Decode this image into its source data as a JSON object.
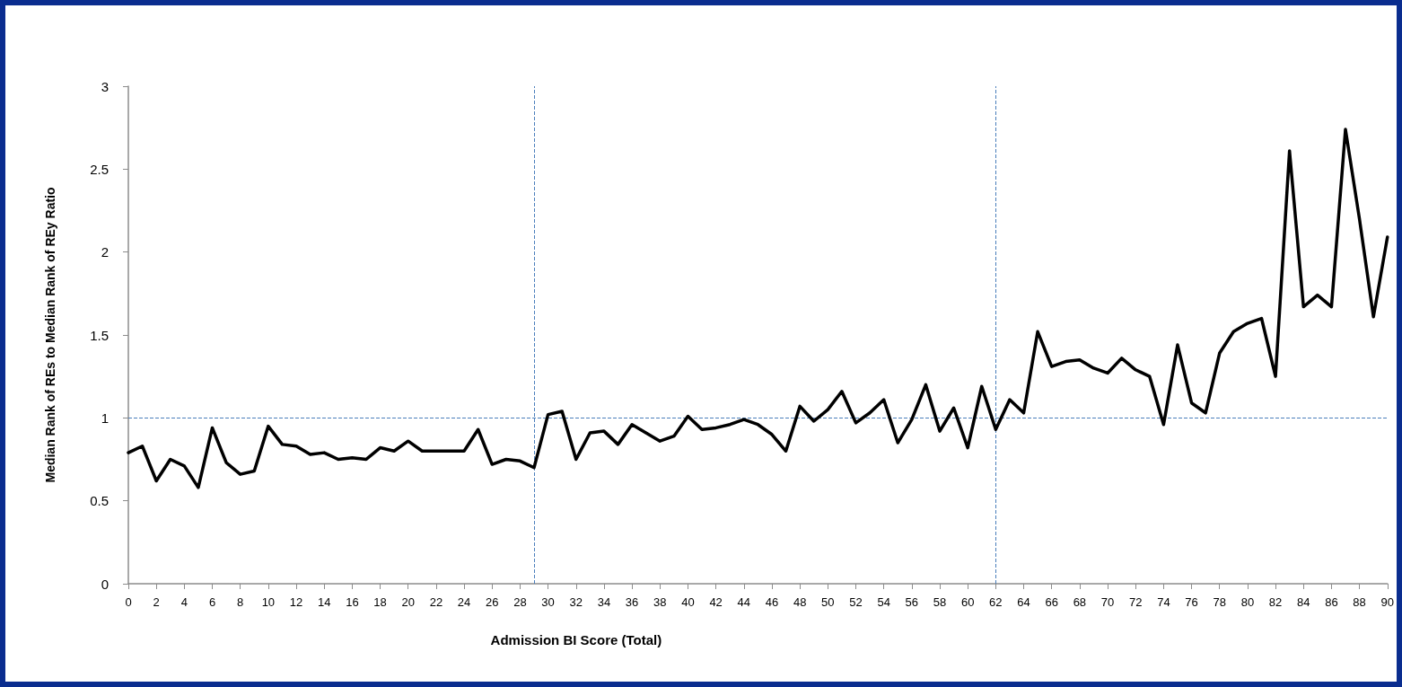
{
  "chart_data": {
    "type": "line",
    "xlabel": "Admission BI Score (Total)",
    "ylabel": "Median Rank of REs to Median Rank of REy Ratio",
    "x": [
      0,
      1,
      2,
      3,
      4,
      5,
      6,
      7,
      8,
      9,
      10,
      11,
      12,
      13,
      14,
      15,
      16,
      17,
      18,
      19,
      20,
      21,
      22,
      23,
      24,
      25,
      26,
      27,
      28,
      29,
      30,
      31,
      32,
      33,
      34,
      35,
      36,
      37,
      38,
      39,
      40,
      41,
      42,
      43,
      44,
      45,
      46,
      47,
      48,
      49,
      50,
      51,
      52,
      53,
      54,
      55,
      56,
      57,
      58,
      59,
      60,
      61,
      62,
      63,
      64,
      65,
      66,
      67,
      68,
      69,
      70,
      71,
      72,
      73,
      74,
      75,
      76,
      77,
      78,
      79,
      80,
      81,
      82,
      83,
      84,
      85,
      86,
      87,
      88,
      89,
      90
    ],
    "series": [
      {
        "color": "#000000",
        "values": [
          0.79,
          0.83,
          0.62,
          0.75,
          0.71,
          0.58,
          0.94,
          0.73,
          0.66,
          0.68,
          0.95,
          0.84,
          0.83,
          0.78,
          0.79,
          0.75,
          0.76,
          0.75,
          0.82,
          0.8,
          0.86,
          0.8,
          0.8,
          0.8,
          0.8,
          0.93,
          0.72,
          0.75,
          0.74,
          0.7,
          1.02,
          1.04,
          0.75,
          0.91,
          0.92,
          0.84,
          0.96,
          0.91,
          0.86,
          0.89,
          1.01,
          0.93,
          0.94,
          0.96,
          0.99,
          0.96,
          0.9,
          0.8,
          1.07,
          0.98,
          1.05,
          1.16,
          0.97,
          1.03,
          1.11,
          0.85,
          0.99,
          1.2,
          0.92,
          1.06,
          0.82,
          1.19,
          0.93,
          1.11,
          1.03,
          1.52,
          1.31,
          1.34,
          1.35,
          1.3,
          1.27,
          1.36,
          1.29,
          1.25,
          0.96,
          1.44,
          1.09,
          1.03,
          1.39,
          1.52,
          1.57,
          1.6,
          1.25,
          2.61,
          1.67,
          1.74,
          1.67,
          2.74,
          2.2,
          1.61,
          2.09
        ]
      }
    ],
    "xlim": [
      0,
      90
    ],
    "xticks": [
      0,
      2,
      4,
      6,
      8,
      10,
      12,
      14,
      16,
      18,
      20,
      22,
      24,
      26,
      28,
      30,
      32,
      34,
      36,
      38,
      40,
      42,
      44,
      46,
      48,
      50,
      52,
      54,
      56,
      58,
      60,
      62,
      64,
      66,
      68,
      70,
      72,
      74,
      76,
      78,
      80,
      82,
      84,
      86,
      88,
      90
    ],
    "ylim": [
      0,
      3
    ],
    "yticks": [
      0,
      0.5,
      1,
      1.5,
      2,
      2.5,
      3
    ],
    "ref_lines": [
      {
        "axis": "y",
        "value": 1,
        "color": "#4a7ebb",
        "line_style": "dashed"
      },
      {
        "axis": "x",
        "value": 29,
        "color": "#4a7ebb",
        "line_style": "dashed"
      },
      {
        "axis": "x",
        "value": 62,
        "color": "#4a7ebb",
        "line_style": "dashed"
      }
    ],
    "grid": false,
    "marker": "none",
    "line_style": "solid"
  }
}
